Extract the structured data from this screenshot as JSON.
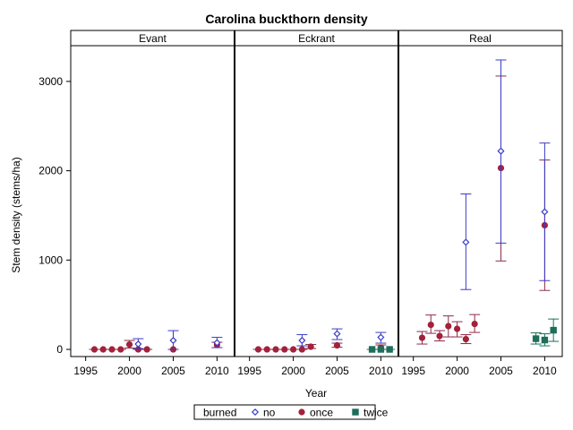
{
  "colors": {
    "no": "#3a3ac8",
    "once": "#a3213a",
    "twice": "#1d6e5a",
    "once_bar": "#8c2a4a"
  },
  "chart_data": {
    "type": "scatter",
    "title": "Carolina buckthorn density",
    "xlabel": "Year",
    "ylabel": "Stem density (stems/ha)",
    "xlim": [
      1993.5,
      2011.8
    ],
    "ylim": [
      -80,
      3400
    ],
    "xticks": [
      1995,
      2000,
      2005,
      2010
    ],
    "yticks": [
      0,
      1000,
      2000,
      3000
    ],
    "legend": {
      "title": "burned",
      "position": "bottom",
      "items": [
        {
          "key": "no",
          "label": "no",
          "marker": "diamond"
        },
        {
          "key": "once",
          "label": "once",
          "marker": "circle"
        },
        {
          "key": "twice",
          "label": "twice",
          "marker": "square"
        }
      ]
    },
    "panels": [
      {
        "label": "Evant",
        "series": [
          {
            "key": "once",
            "points": [
              {
                "x": 1996,
                "y": 0,
                "lo": 0,
                "hi": 0
              },
              {
                "x": 1997,
                "y": 0,
                "lo": 0,
                "hi": 0
              },
              {
                "x": 1998,
                "y": 0,
                "lo": 0,
                "hi": 0
              },
              {
                "x": 1999,
                "y": 0,
                "lo": 0,
                "hi": 0
              },
              {
                "x": 2000,
                "y": 55,
                "lo": 15,
                "hi": 100
              },
              {
                "x": 2001,
                "y": 0,
                "lo": 0,
                "hi": 0
              },
              {
                "x": 2002,
                "y": 0,
                "lo": 0,
                "hi": 0
              },
              {
                "x": 2005,
                "y": 0,
                "lo": 0,
                "hi": 0
              },
              {
                "x": 2010,
                "y": 50,
                "lo": 20,
                "hi": 80
              }
            ]
          },
          {
            "key": "no",
            "points": [
              {
                "x": 2001,
                "y": 60,
                "lo": 10,
                "hi": 120
              },
              {
                "x": 2005,
                "y": 100,
                "lo": 0,
                "hi": 210
              },
              {
                "x": 2010,
                "y": 75,
                "lo": 20,
                "hi": 135
              }
            ]
          }
        ]
      },
      {
        "label": "Eckrant",
        "series": [
          {
            "key": "once",
            "points": [
              {
                "x": 1996,
                "y": 0,
                "lo": 0,
                "hi": 0
              },
              {
                "x": 1997,
                "y": 0,
                "lo": 0,
                "hi": 0
              },
              {
                "x": 1998,
                "y": 0,
                "lo": 0,
                "hi": 0
              },
              {
                "x": 1999,
                "y": 0,
                "lo": 0,
                "hi": 0
              },
              {
                "x": 2000,
                "y": 0,
                "lo": 0,
                "hi": 0
              },
              {
                "x": 2001,
                "y": 0,
                "lo": 0,
                "hi": 0
              },
              {
                "x": 2002,
                "y": 30,
                "lo": 10,
                "hi": 55
              },
              {
                "x": 2005,
                "y": 45,
                "lo": 25,
                "hi": 70
              },
              {
                "x": 2010,
                "y": 20,
                "lo": 0,
                "hi": 50
              }
            ]
          },
          {
            "key": "no",
            "points": [
              {
                "x": 2001,
                "y": 100,
                "lo": 40,
                "hi": 165
              },
              {
                "x": 2005,
                "y": 175,
                "lo": 110,
                "hi": 230
              },
              {
                "x": 2010,
                "y": 135,
                "lo": 70,
                "hi": 190
              }
            ]
          },
          {
            "key": "twice",
            "points": [
              {
                "x": 2009,
                "y": 0,
                "lo": 0,
                "hi": 0
              },
              {
                "x": 2010,
                "y": 0,
                "lo": 0,
                "hi": 0
              },
              {
                "x": 2011,
                "y": 0,
                "lo": 0,
                "hi": 0
              }
            ]
          }
        ]
      },
      {
        "label": "Real",
        "series": [
          {
            "key": "once",
            "points": [
              {
                "x": 1996,
                "y": 130,
                "lo": 60,
                "hi": 200
              },
              {
                "x": 1997,
                "y": 275,
                "lo": 180,
                "hi": 385
              },
              {
                "x": 1998,
                "y": 150,
                "lo": 95,
                "hi": 210
              },
              {
                "x": 1999,
                "y": 260,
                "lo": 140,
                "hi": 375
              },
              {
                "x": 2000,
                "y": 230,
                "lo": 140,
                "hi": 310
              },
              {
                "x": 2001,
                "y": 115,
                "lo": 65,
                "hi": 165
              },
              {
                "x": 2002,
                "y": 285,
                "lo": 190,
                "hi": 390
              },
              {
                "x": 2005,
                "y": 2030,
                "lo": 990,
                "hi": 3060
              },
              {
                "x": 2010,
                "y": 1390,
                "lo": 660,
                "hi": 2120
              }
            ]
          },
          {
            "key": "no",
            "points": [
              {
                "x": 2001,
                "y": 1200,
                "lo": 670,
                "hi": 1740
              },
              {
                "x": 2005,
                "y": 2220,
                "lo": 1190,
                "hi": 3240
              },
              {
                "x": 2010,
                "y": 1540,
                "lo": 770,
                "hi": 2310
              }
            ]
          },
          {
            "key": "twice",
            "points": [
              {
                "x": 2009,
                "y": 120,
                "lo": 60,
                "hi": 185
              },
              {
                "x": 2010,
                "y": 105,
                "lo": 40,
                "hi": 175
              },
              {
                "x": 2011,
                "y": 215,
                "lo": 90,
                "hi": 340
              }
            ]
          }
        ]
      }
    ]
  }
}
